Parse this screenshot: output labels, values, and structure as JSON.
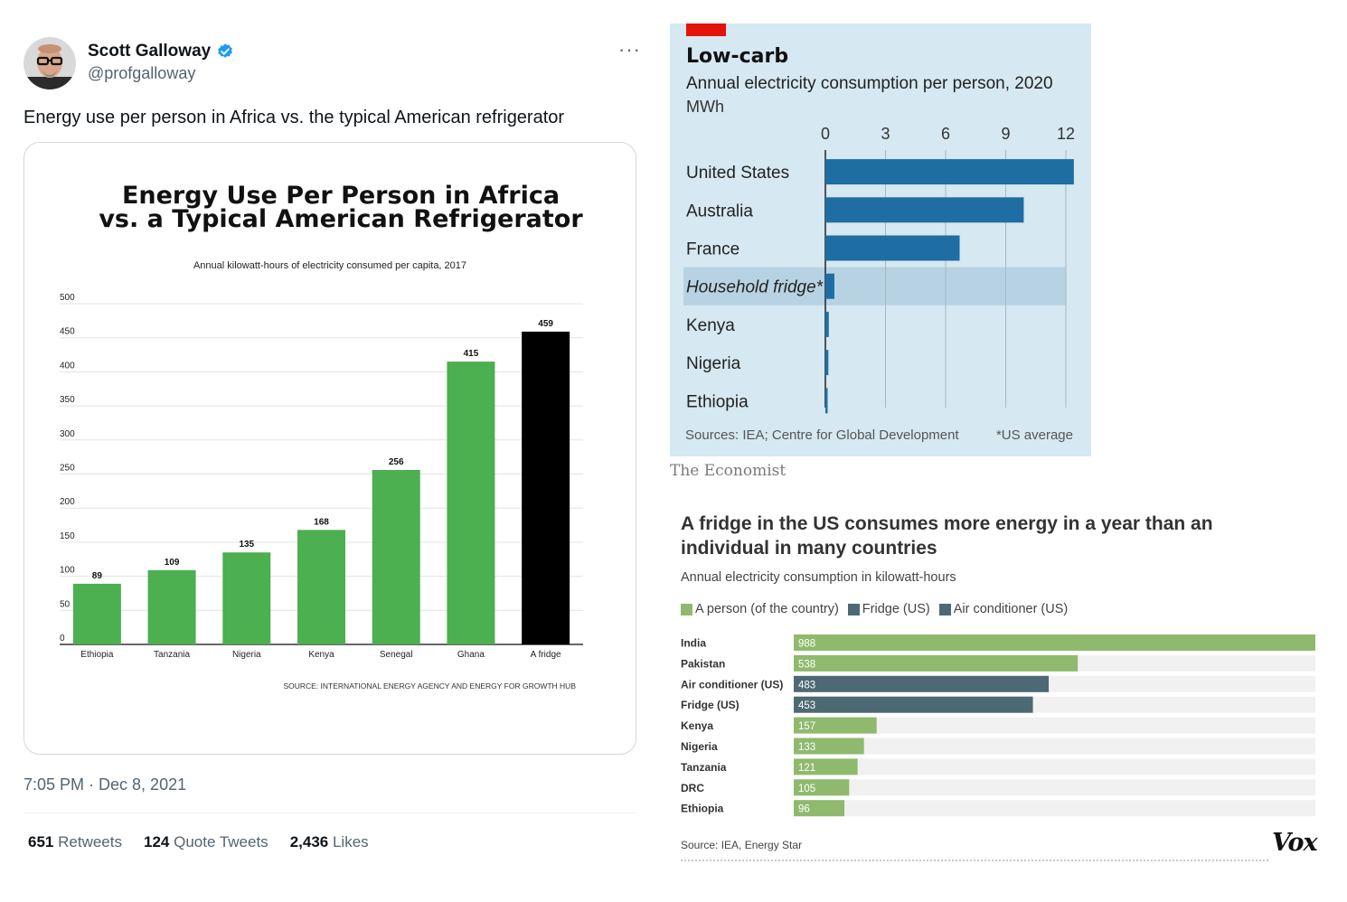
{
  "tweet": {
    "author_name": "Scott Galloway",
    "author_handle": "@profgalloway",
    "more_label": "···",
    "text": "Energy use per person in Africa vs. the typical American refrigerator",
    "timestamp": "7:05 PM · Dec 8, 2021",
    "stats": {
      "retweets_count": "651",
      "retweets_label": "Retweets",
      "quote_count": "124",
      "quote_label": "Quote Tweets",
      "likes_count": "2,436",
      "likes_label": "Likes"
    }
  },
  "colors": {
    "verified": "#1d9bf0",
    "africa_green": "#4caf50",
    "fridge_black": "#000000",
    "economist_bar": "#1f6ea3",
    "economist_bg": "#d6e8f1",
    "economist_highlight": "#b7d3e3",
    "economist_red": "#e3120b",
    "vox_green": "#8fba6e",
    "vox_slate": "#4d6a74",
    "vox_track": "#f1f1f1"
  },
  "chart_data": [
    {
      "type": "bar",
      "title_line1": "Energy Use Per Person in Africa",
      "title_line2": "vs. a Typical American Refrigerator",
      "subtitle": "Annual kilowatt-hours of electricity consumed per capita, 2017",
      "categories": [
        "Ethiopia",
        "Tanzania",
        "Nigeria",
        "Kenya",
        "Senegal",
        "Ghana",
        "A fridge"
      ],
      "values": [
        89,
        109,
        135,
        168,
        256,
        415,
        459
      ],
      "highlight_index": 6,
      "ylim": [
        0,
        500
      ],
      "yticks": [
        0,
        50,
        100,
        150,
        200,
        250,
        300,
        350,
        400,
        450,
        500
      ],
      "grid": true,
      "source": "SOURCE: INTERNATIONAL ENERGY AGENCY AND ENERGY FOR GROWTH HUB"
    },
    {
      "type": "bar",
      "orientation": "horizontal",
      "title": "Low-carb",
      "subtitle": "Annual electricity consumption per person, 2020",
      "unit": "MWh",
      "categories": [
        "United States",
        "Australia",
        "France",
        "Household fridge*",
        "Kenya",
        "Nigeria",
        "Ethiopia"
      ],
      "values": [
        12.4,
        9.9,
        6.7,
        0.45,
        0.17,
        0.15,
        0.08
      ],
      "highlight_index": 3,
      "xlim": [
        0,
        12
      ],
      "xticks": [
        0,
        3,
        6,
        9,
        12
      ],
      "grid": true,
      "source": "Sources: IEA; Centre for Global Development",
      "note": "*US average",
      "brand": "The Economist"
    },
    {
      "type": "bar",
      "orientation": "horizontal",
      "title": "A fridge in the US consumes more energy in a year than an individual in many countries",
      "subtitle": "Annual electricity consumption in kilowatt-hours",
      "legend": [
        "A person (of the country)",
        "Fridge (US)",
        "Air conditioner (US)"
      ],
      "categories": [
        "India",
        "Pakistan",
        "Air conditioner (US)",
        "Fridge (US)",
        "Kenya",
        "Nigeria",
        "Tanzania",
        "DRC",
        "Ethiopia"
      ],
      "values": [
        988,
        538,
        483,
        453,
        157,
        133,
        121,
        105,
        96
      ],
      "kinds": [
        "person",
        "person",
        "ac",
        "fridge",
        "person",
        "person",
        "person",
        "person",
        "person"
      ],
      "xlim": [
        0,
        988
      ],
      "source": "Source: IEA, Energy Star",
      "brand": "Vox"
    }
  ]
}
